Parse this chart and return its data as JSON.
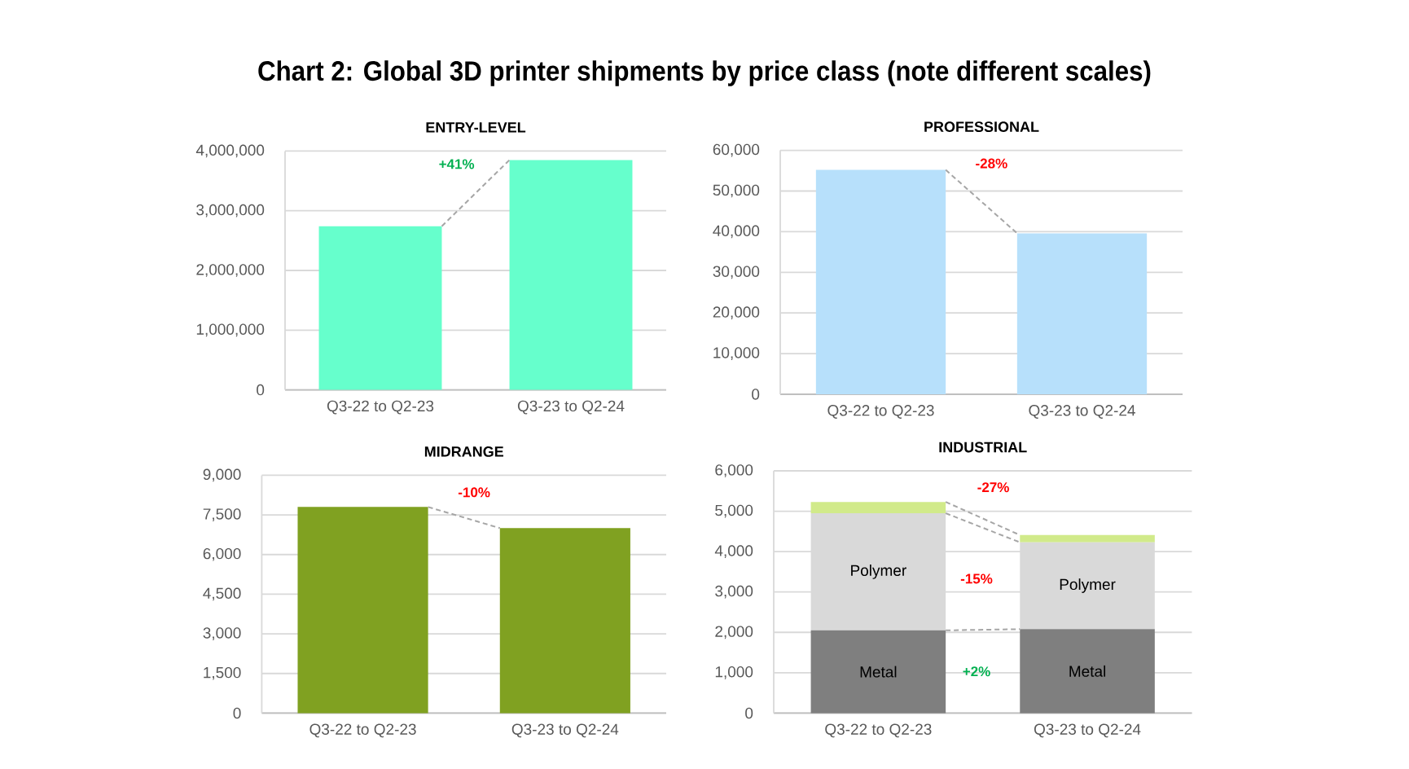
{
  "chart_data": [
    {
      "type": "bar",
      "title": "Chart 2: Global 3D printer shipments by price class (note different scales)",
      "subtitle": "ENTRY-LEVEL",
      "categories": [
        "Q3-22 to Q2-23",
        "Q3-23 to Q2-24"
      ],
      "values": [
        2740000,
        3850000
      ],
      "color": "#66ffcc",
      "ylim": [
        0,
        4000000
      ],
      "yticks": [
        0,
        {
          "value": 1000000,
          "label": "1,000,000"
        },
        {
          "value": 2000000,
          "label": "2,000,000"
        },
        {
          "value": 3000000,
          "label": "3,000,000"
        },
        {
          "value": 4000000,
          "label": "4,000,000"
        }
      ],
      "grid": "y",
      "annotations": [
        "+41%"
      ]
    },
    {
      "type": "bar",
      "title": "PROFESSIONAL",
      "categories": [
        "Q3-22 to Q2-23",
        "Q3-23 to Q2-24"
      ],
      "values": [
        55200,
        39600
      ],
      "color": "#b7e0fb",
      "ylim": [
        0,
        60000
      ],
      "yticks": [
        0,
        {
          "value": 10000,
          "label": "10,000"
        },
        {
          "value": 20000,
          "label": "20,000"
        },
        {
          "value": 30000,
          "label": "30,000"
        },
        {
          "value": 40000,
          "label": "40,000"
        },
        {
          "value": 50000,
          "label": "50,000"
        },
        {
          "value": 60000,
          "label": "60,000"
        }
      ],
      "grid": "y",
      "annotations": [
        "-28%"
      ]
    },
    {
      "type": "bar",
      "title": "MIDRANGE",
      "categories": [
        "Q3-22 to Q2-23",
        "Q3-23 to Q2-24"
      ],
      "values": [
        7800,
        7000
      ],
      "color": "#80a121",
      "ylim": [
        0,
        9000
      ],
      "yticks": [
        0,
        {
          "value": 1500,
          "label": "1,500"
        },
        {
          "value": 3000,
          "label": "3,000"
        },
        {
          "value": 4500,
          "label": "4,500"
        },
        {
          "value": 6000,
          "label": "6,000"
        },
        {
          "value": 7500,
          "label": "7,500"
        },
        {
          "value": 9000,
          "label": "9,000"
        }
      ],
      "grid": "y",
      "annotations": [
        "-10%"
      ]
    },
    {
      "type": "bar",
      "title": "INDUSTRIAL",
      "categories": [
        "Q3-22 to Q2-23",
        "Q3-23 to Q2-24"
      ],
      "stacked": true,
      "series": [
        {
          "name": "Metal",
          "color": "#7f7f7f",
          "values": [
            2050,
            2080
          ]
        },
        {
          "name": "Polymer",
          "color": "#d9d9d9",
          "values": [
            2900,
            2150
          ]
        },
        {
          "color": "#d1ea8a",
          "values": [
            280,
            180
          ]
        }
      ],
      "ylim": [
        0,
        6000
      ],
      "yticks": [
        0,
        {
          "value": 1000,
          "label": "1,000"
        },
        {
          "value": 2000,
          "label": "2,000"
        },
        {
          "value": 3000,
          "label": "3,000"
        },
        {
          "value": 4000,
          "label": "4,000"
        },
        {
          "value": 5000,
          "label": "5,000"
        },
        {
          "value": 6000,
          "label": "6,000"
        }
      ],
      "grid": "y",
      "annotations": [
        "-27%",
        "-15%",
        "+2%"
      ]
    }
  ]
}
